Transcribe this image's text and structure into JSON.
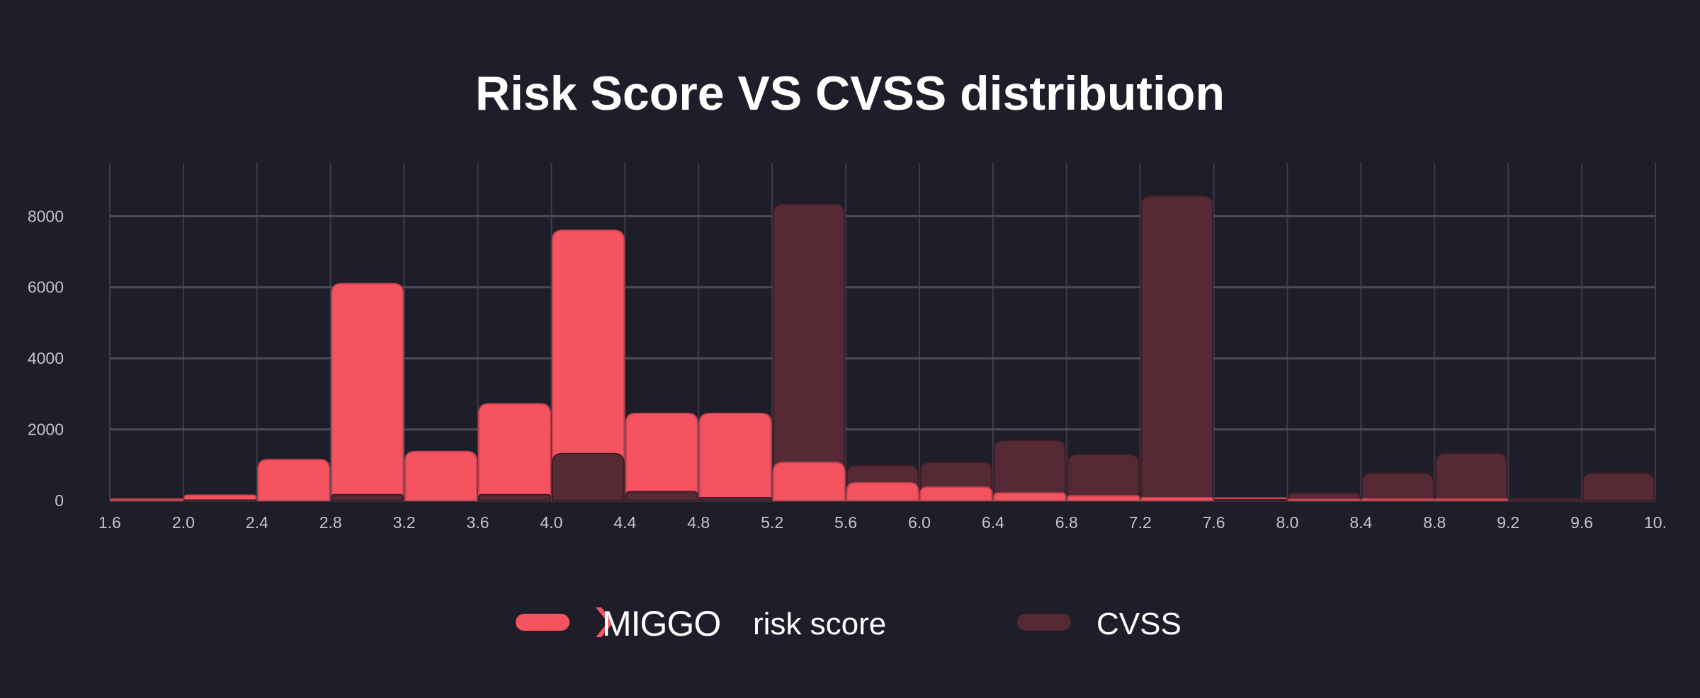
{
  "chart_data": {
    "type": "bar",
    "title": "Risk Score VS CVSS distribution",
    "xlabel": "",
    "ylabel": "",
    "x_ticks": [
      "1.6",
      "2.0",
      "2.4",
      "2.8",
      "3.2",
      "3.6",
      "4.0",
      "4.4",
      "4.8",
      "5.2",
      "5.6",
      "6.0",
      "6.4",
      "6.8",
      "7.2",
      "7.6",
      "8.0",
      "8.4",
      "8.8",
      "9.2",
      "9.6",
      "10."
    ],
    "y_ticks": [
      "0",
      "2000",
      "4000",
      "6000",
      "8000"
    ],
    "xlim": [
      1.6,
      10.0
    ],
    "ylim": [
      0,
      9500
    ],
    "bin_width": 0.4,
    "grid": true,
    "legend": "bottom",
    "bins": [
      1.6,
      2.0,
      2.4,
      2.8,
      3.2,
      3.6,
      4.0,
      4.4,
      4.8,
      5.2,
      5.6,
      6.0,
      6.4,
      6.8,
      7.2,
      7.6,
      8.0,
      8.4,
      8.8,
      9.2,
      9.6
    ],
    "series": [
      {
        "name": "risk score",
        "logo": "MIGGO",
        "color": "#f4535f",
        "values": [
          40,
          150,
          1150,
          6100,
          1380,
          2720,
          7600,
          2450,
          2450,
          1070,
          495,
          370,
          210,
          130,
          80,
          70,
          30,
          40,
          40,
          0,
          0
        ]
      },
      {
        "name": "CVSS",
        "color": "#552a35",
        "values": [
          0,
          10,
          0,
          165,
          0,
          165,
          1320,
          250,
          80,
          8340,
          990,
          1080,
          1690,
          1300,
          8570,
          20,
          210,
          770,
          1330,
          60,
          770
        ]
      }
    ]
  }
}
